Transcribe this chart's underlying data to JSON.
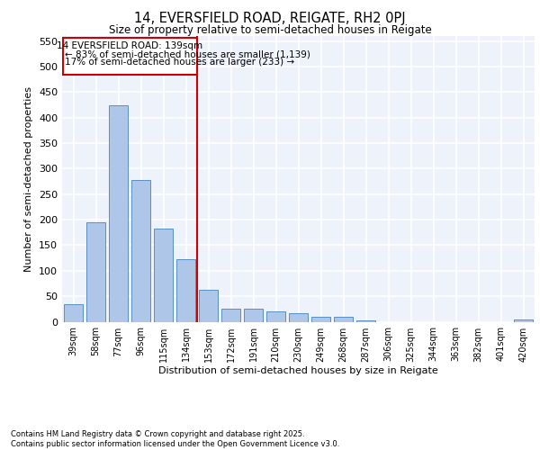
{
  "title1": "14, EVERSFIELD ROAD, REIGATE, RH2 0PJ",
  "title2": "Size of property relative to semi-detached houses in Reigate",
  "xlabel": "Distribution of semi-detached houses by size in Reigate",
  "ylabel": "Number of semi-detached properties",
  "categories": [
    "39sqm",
    "58sqm",
    "77sqm",
    "96sqm",
    "115sqm",
    "134sqm",
    "153sqm",
    "172sqm",
    "191sqm",
    "210sqm",
    "230sqm",
    "249sqm",
    "268sqm",
    "287sqm",
    "306sqm",
    "325sqm",
    "344sqm",
    "363sqm",
    "382sqm",
    "401sqm",
    "420sqm"
  ],
  "values": [
    35,
    195,
    425,
    278,
    183,
    122,
    62,
    26,
    25,
    20,
    16,
    10,
    10,
    3,
    0,
    0,
    0,
    0,
    0,
    0,
    5
  ],
  "bar_color": "#aec6e8",
  "bar_edge_color": "#5a8fc2",
  "vline_color": "#cc0000",
  "annotation_title": "14 EVERSFIELD ROAD: 139sqm",
  "annotation_line1": "← 83% of semi-detached houses are smaller (1,139)",
  "annotation_line2": "17% of semi-detached houses are larger (233) →",
  "annotation_box_color": "#cc0000",
  "ylim": [
    0,
    560
  ],
  "yticks": [
    0,
    50,
    100,
    150,
    200,
    250,
    300,
    350,
    400,
    450,
    500,
    550
  ],
  "footer1": "Contains HM Land Registry data © Crown copyright and database right 2025.",
  "footer2": "Contains public sector information licensed under the Open Government Licence v3.0.",
  "bg_color": "#eef2fb",
  "grid_color": "#ffffff"
}
